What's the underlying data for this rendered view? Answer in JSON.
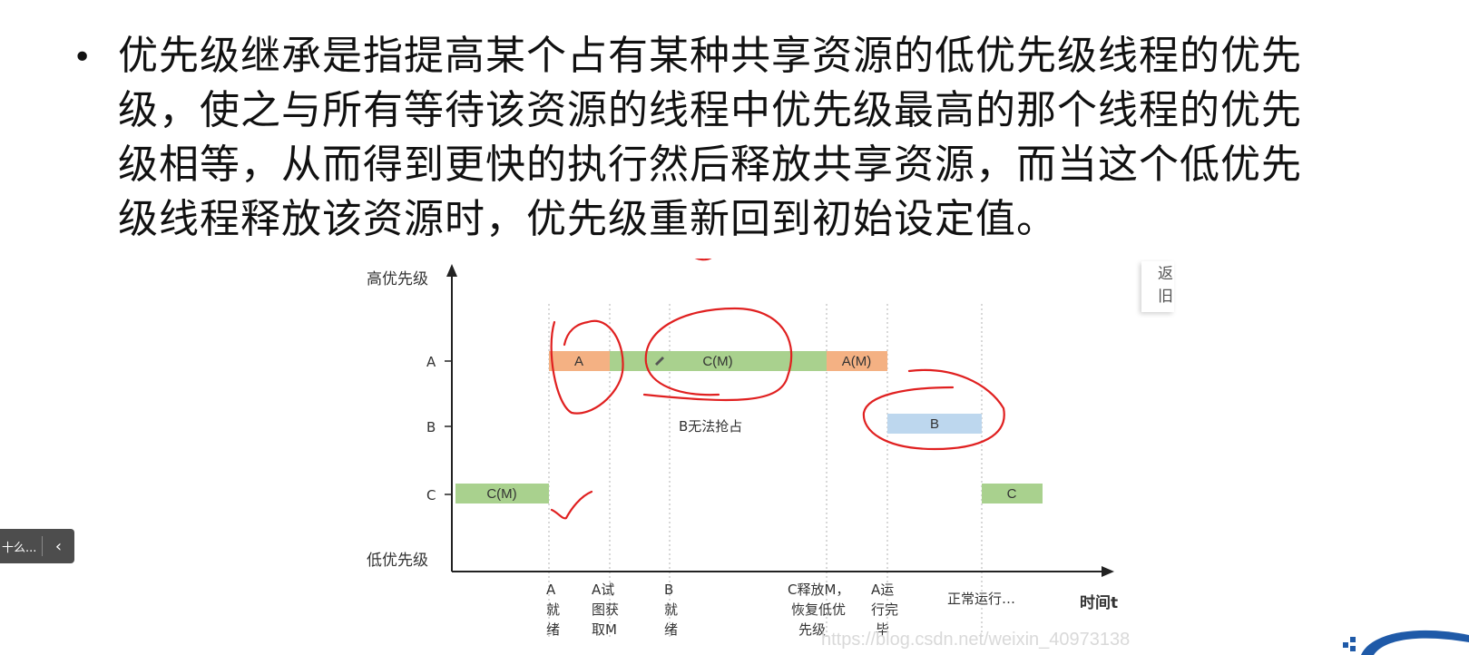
{
  "slide": {
    "bullet": "•",
    "lines": [
      "优先级继承是指提高某个占有某种共享资源的低优先级线程的优先",
      "级，使之与所有等待该资源的线程中优先级最高的那个线程的优先",
      "级相等，从而得到更快的执行然后释放共享资源，而当这个低优先",
      "级线程释放该资源时，优先级重新回到初始设定值。"
    ]
  },
  "diagram": {
    "y_axis_top_label": "高优先级",
    "y_axis_bottom_label": "低优先级",
    "x_axis_label": "时间t",
    "rows": [
      "A",
      "B",
      "C"
    ],
    "bars": [
      {
        "row": "A",
        "label": "A",
        "color": "#f4b183"
      },
      {
        "row": "A",
        "label": "C(M)",
        "color": "#a9d18e"
      },
      {
        "row": "A",
        "label": "A(M)",
        "color": "#f4b183"
      },
      {
        "row": "B",
        "label": "B",
        "color": "#bdd7ee"
      },
      {
        "row": "C",
        "label": "C(M)",
        "color": "#a9d18e"
      },
      {
        "row": "C",
        "label": "C",
        "color": "#a9d18e"
      }
    ],
    "note": "B无法抢占",
    "events": [
      {
        "lines": [
          "A",
          "就",
          "绪"
        ]
      },
      {
        "lines": [
          "A试",
          "图获",
          "取M"
        ]
      },
      {
        "lines": [
          "B",
          "就",
          "绪"
        ]
      },
      {
        "lines": [
          "C释放M，",
          "恢复低优",
          "先级"
        ]
      },
      {
        "lines": [
          "A运",
          "行完",
          "毕"
        ]
      },
      {
        "lines": [
          "正常运行…"
        ]
      }
    ],
    "annotation_color": "#e02020"
  },
  "popup": {
    "line1": "返",
    "line2": "旧"
  },
  "toolbar": {
    "text": "十么...",
    "collapse_icon": "chevron-left-icon",
    "collapse_glyph": "‹"
  },
  "watermark": "https://blog.csdn.net/weixin_40973138"
}
